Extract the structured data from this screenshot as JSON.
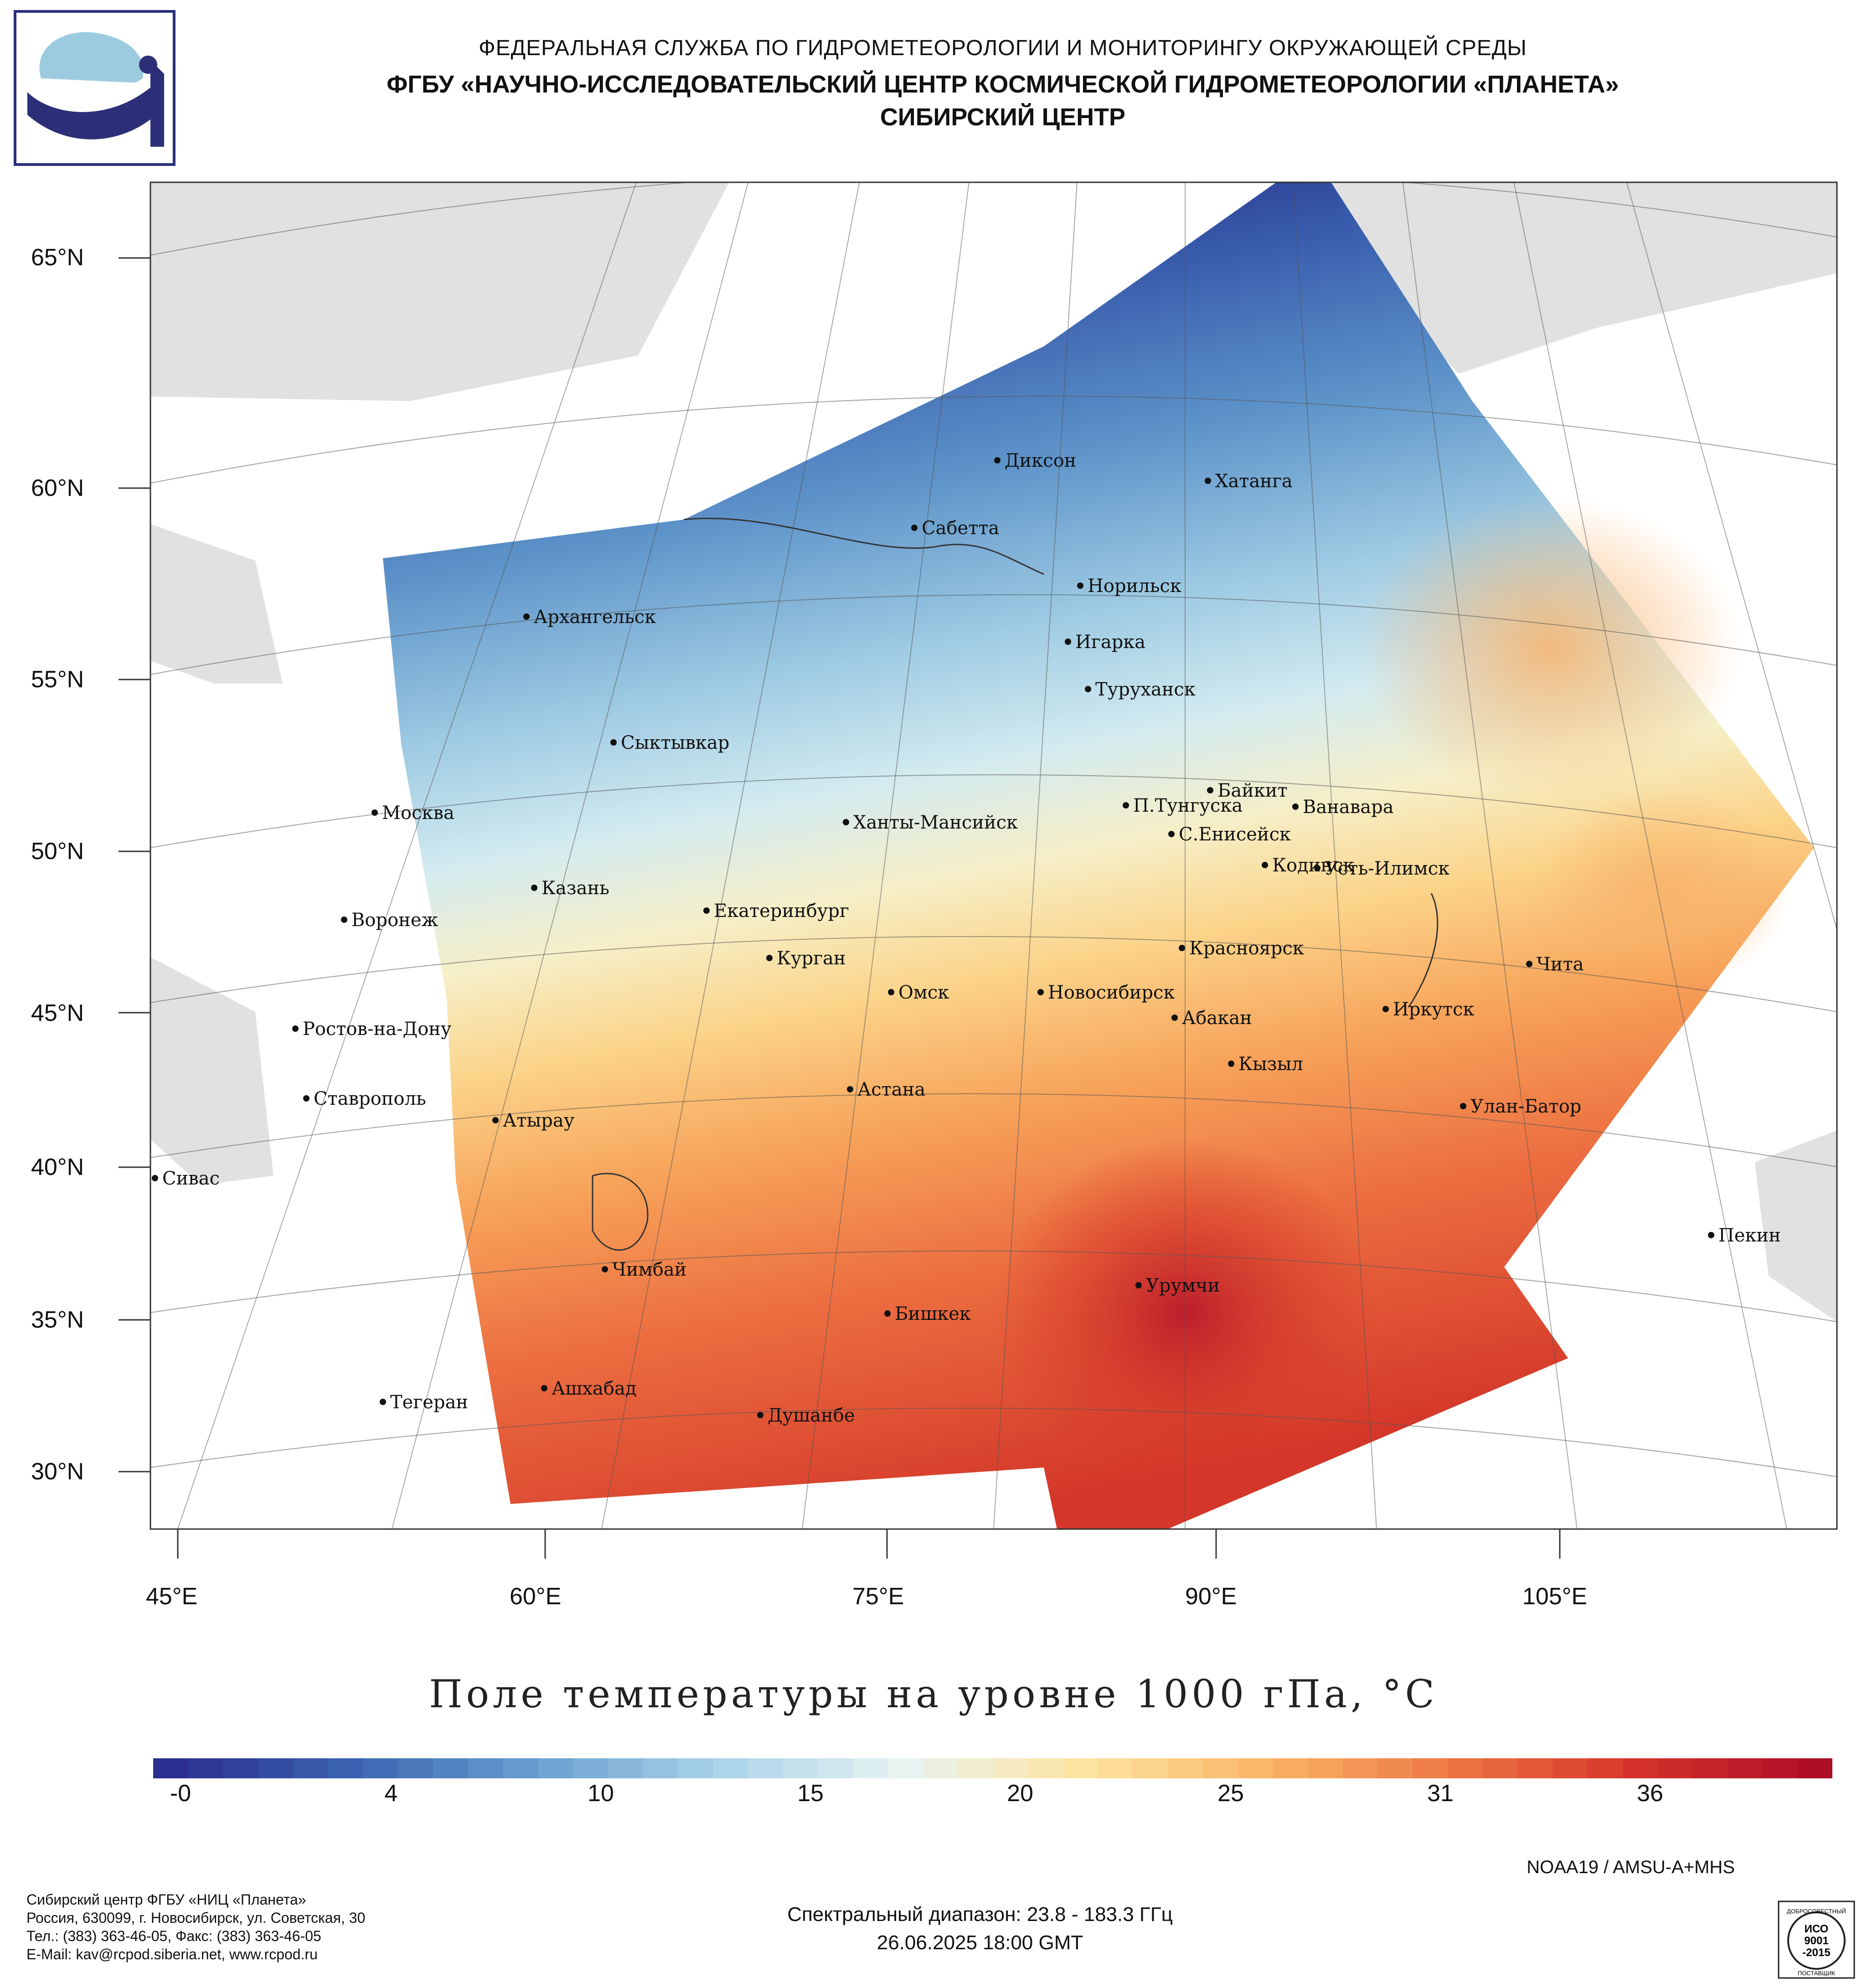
{
  "header": {
    "agency": "ФЕДЕРАЛЬНАЯ СЛУЖБА ПО ГИДРОМЕТЕОРОЛОГИИ И МОНИТОРИНГУ ОКРУЖАЮЩЕЙ СРЕДЫ",
    "institute": "ФГБУ «НАУЧНО-ИССЛЕДОВАТЕЛЬСКИЙ ЦЕНТР КОСМИЧЕСКОЙ ГИДРОМЕТЕОРОЛОГИИ «ПЛАНЕТА»",
    "center": "СИБИРСКИЙ ЦЕНТР",
    "logo_icon": "planeta-logo-icon"
  },
  "map": {
    "lat_labels": [
      "65°N",
      "60°N",
      "55°N",
      "50°N",
      "45°N",
      "40°N",
      "35°N",
      "30°N"
    ],
    "lon_labels": [
      "45°E",
      "60°E",
      "75°E",
      "90°E",
      "105°E"
    ],
    "cities": [
      {
        "name": "Диксон"
      },
      {
        "name": "Хатанга"
      },
      {
        "name": "Сабетта"
      },
      {
        "name": "Норильск"
      },
      {
        "name": "Архангельск"
      },
      {
        "name": "Игарка"
      },
      {
        "name": "Туруханск"
      },
      {
        "name": "Сыктывкар"
      },
      {
        "name": "Байкит"
      },
      {
        "name": "Москва"
      },
      {
        "name": "П.Тунгуска"
      },
      {
        "name": "Ванавара"
      },
      {
        "name": "Ханты-Мансийск"
      },
      {
        "name": "С.Енисейск"
      },
      {
        "name": "Кодинск"
      },
      {
        "name": "Усть-Илимск"
      },
      {
        "name": "Казань"
      },
      {
        "name": "Екатеринбург"
      },
      {
        "name": "Воронеж"
      },
      {
        "name": "Красноярск"
      },
      {
        "name": "Курган"
      },
      {
        "name": "Чита"
      },
      {
        "name": "Омск"
      },
      {
        "name": "Новосибирск"
      },
      {
        "name": "Иркутск"
      },
      {
        "name": "Абакан"
      },
      {
        "name": "Ростов-на-Дону"
      },
      {
        "name": "Кызыл"
      },
      {
        "name": "Астана"
      },
      {
        "name": "Ставрополь"
      },
      {
        "name": "Улан-Батор"
      },
      {
        "name": "Атырау"
      },
      {
        "name": "Сивас"
      },
      {
        "name": "Пекин"
      },
      {
        "name": "Чимбай"
      },
      {
        "name": "Урумчи"
      },
      {
        "name": "Бишкек"
      },
      {
        "name": "Ашхабад"
      },
      {
        "name": "Тегеран"
      },
      {
        "name": "Душанбе"
      }
    ]
  },
  "chart_data": {
    "type": "heatmap",
    "title": "Поле температуры на уровне 1000 гПа, °C",
    "colorbar": {
      "tick_labels": [
        "-0",
        "4",
        "10",
        "15",
        "20",
        "25",
        "31",
        "36"
      ],
      "range": [
        -2,
        39
      ],
      "palette": [
        "#2b2e8f",
        "#3b63b0",
        "#6a9fd0",
        "#a9d3e8",
        "#e8f3f3",
        "#fde4a0",
        "#f9b566",
        "#ee7844",
        "#d6342a",
        "#ae0f26"
      ]
    },
    "pattern": "cold in the north (Arctic coast, ~0–8 °C), warming southward; warmest (~34–39 °C) in Xinjiang/Central Asia near Урумчи"
  },
  "satellite": "NOAA19 / AMSU-A+MHS",
  "spectral_range": "Спектральный диапазон: 23.8 - 183.3 ГГц",
  "datetime": "26.06.2025 18:00 GMT",
  "footer": {
    "line1": "Сибирский центр ФГБУ «НИЦ «Планета»",
    "line2": "Россия, 630099, г. Новосибирск, ул. Советская, 30",
    "line3": "Тел.: (383) 363-46-05, Факс: (383) 363-46-05",
    "line4": "E-Mail: kav@rcpod.siberia.net, www.rcpod.ru"
  },
  "iso_badge": {
    "top": "ДОБРОСОВЕСТНЫЙ",
    "l1": "ИСО",
    "l2": "9001",
    "l3": "-2015",
    "bottom": "ПОСТАВЩИК"
  }
}
